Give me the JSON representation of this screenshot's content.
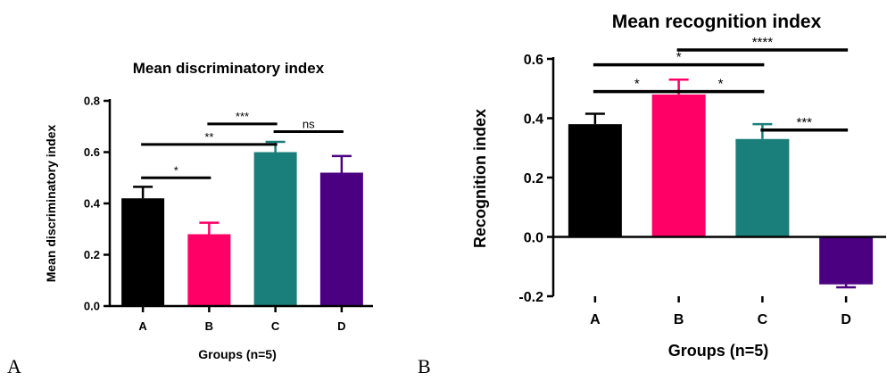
{
  "panels": [
    {
      "label": "A"
    },
    {
      "label": "B"
    }
  ],
  "chart_data": [
    {
      "type": "bar",
      "title": "Mean discriminatory index",
      "xlabel": "Groups (n=5)",
      "ylabel": "Mean discriminatory index",
      "categories": [
        "A",
        "B",
        "C",
        "D"
      ],
      "values": [
        0.42,
        0.28,
        0.6,
        0.52
      ],
      "errors": [
        0.045,
        0.045,
        0.04,
        0.065
      ],
      "colors": [
        "#000000",
        "#ff0066",
        "#1a7f7a",
        "#4b0082"
      ],
      "ylim": [
        0,
        0.8
      ],
      "yticks": [
        0.0,
        0.2,
        0.4,
        0.6,
        0.8
      ],
      "ytick_labels": [
        "0.0",
        "0.2",
        "0.4",
        "0.6",
        "0.8"
      ],
      "significance": [
        {
          "from": "A",
          "to": "B",
          "label": "*",
          "y": 0.5
        },
        {
          "from": "A",
          "to": "C",
          "label": "**",
          "y": 0.63
        },
        {
          "from": "B",
          "to": "C",
          "label": "***",
          "y": 0.71
        },
        {
          "from": "C",
          "to": "D",
          "label": "ns",
          "y": 0.68
        }
      ]
    },
    {
      "type": "bar",
      "title": "Mean recognition index",
      "xlabel": "Groups (n=5)",
      "ylabel": "Recognition index",
      "categories": [
        "A",
        "B",
        "C",
        "D"
      ],
      "values": [
        0.38,
        0.48,
        0.33,
        -0.16
      ],
      "errors": [
        0.035,
        0.05,
        0.05,
        0.01
      ],
      "colors": [
        "#000000",
        "#ff0066",
        "#1a7f7a",
        "#4b0082"
      ],
      "ylim": [
        -0.2,
        0.6
      ],
      "yticks": [
        -0.2,
        0.0,
        0.2,
        0.4,
        0.6
      ],
      "ytick_labels": [
        "-0.2",
        "0.0",
        "0.2",
        "0.4",
        "0.6"
      ],
      "significance": [
        {
          "from": "A",
          "to": "B",
          "label": "*",
          "y": 0.49
        },
        {
          "from": "A",
          "to": "C",
          "label": "*",
          "y": 0.58
        },
        {
          "from": "B",
          "to": "D",
          "label": "****",
          "y": 0.63
        },
        {
          "from": "B",
          "to": "C",
          "label": "*",
          "y": 0.49
        },
        {
          "from": "C",
          "to": "D",
          "label": "***",
          "y": 0.36
        }
      ]
    }
  ]
}
